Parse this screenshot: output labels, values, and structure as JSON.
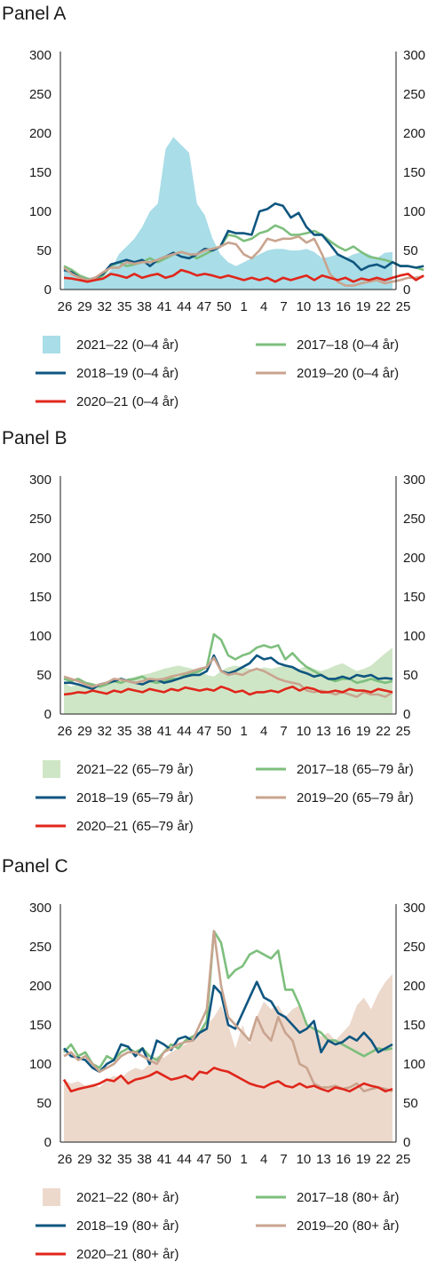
{
  "colors": {
    "s2017_18": "#7dbf7d",
    "s2018_19": "#0f5680",
    "s2019_20": "#c9a48f",
    "s2020_21": "#e0261b",
    "fillA": "#a9dde7",
    "fillB": "#cfe6c6",
    "fillC": "#ecd9cc",
    "axis": "#1a1a1a"
  },
  "chart_data": [
    {
      "panel_title": "Panel A",
      "type": "line",
      "x_tick_labels": [
        "26",
        "29",
        "32",
        "35",
        "38",
        "41",
        "44",
        "47",
        "50",
        "1",
        "4",
        "7",
        "10",
        "13",
        "16",
        "19",
        "22",
        "25"
      ],
      "y_ticks": [
        0,
        50,
        100,
        150,
        200,
        250,
        300
      ],
      "ylim": [
        0,
        300
      ],
      "secondary_y_axis": true,
      "legend": [
        "2021–22 (0–4 år)",
        "2017–18 (0–4 år)",
        "2018–19 (0–4 år)",
        "2019–20 (0–4 år)",
        "2020–21 (0–4 år)"
      ],
      "series": [
        {
          "name": "2021–22 (0–4 år)",
          "style": "area",
          "color_key": "fillA",
          "values": [
            30,
            20,
            12,
            10,
            12,
            15,
            25,
            45,
            55,
            65,
            80,
            100,
            110,
            180,
            195,
            185,
            175,
            110,
            95,
            65,
            45,
            35,
            30,
            35,
            40,
            45,
            50,
            52,
            52,
            50,
            50,
            52,
            48,
            40,
            42,
            45,
            40,
            45,
            48,
            45,
            40,
            47,
            48
          ]
        },
        {
          "name": "2017–18 (0–4 år)",
          "style": "line",
          "color_key": "s2017_18",
          "values": [
            30,
            25,
            18,
            14,
            12,
            18,
            30,
            35,
            30,
            32,
            35,
            40,
            35,
            40,
            45,
            48,
            45,
            40,
            45,
            50,
            55,
            70,
            68,
            62,
            65,
            72,
            75,
            82,
            78,
            70,
            70,
            72,
            75,
            70,
            62,
            55,
            50,
            55,
            48,
            42,
            40,
            38,
            35,
            30,
            30,
            28,
            25
          ]
        },
        {
          "name": "2018–19 (0–4 år)",
          "style": "line",
          "color_key": "s2018_19",
          "values": [
            25,
            22,
            15,
            12,
            15,
            20,
            32,
            35,
            38,
            35,
            38,
            30,
            38,
            42,
            47,
            42,
            40,
            45,
            52,
            50,
            55,
            75,
            72,
            72,
            70,
            100,
            103,
            110,
            107,
            92,
            98,
            80,
            70,
            70,
            58,
            45,
            40,
            35,
            25,
            30,
            32,
            28,
            35,
            30,
            30,
            28,
            30
          ]
        },
        {
          "name": "2019–20 (0–4 år)",
          "style": "line",
          "color_key": "s2019_20",
          "values": [
            28,
            20,
            15,
            12,
            15,
            22,
            28,
            28,
            35,
            33,
            35,
            35,
            38,
            42,
            45,
            48,
            45,
            45,
            50,
            52,
            55,
            60,
            58,
            45,
            40,
            50,
            65,
            62,
            65,
            65,
            68,
            60,
            65,
            45,
            20,
            10,
            5,
            5,
            8,
            10,
            12,
            8,
            10,
            12,
            15,
            15,
            17
          ]
        },
        {
          "name": "2020–21 (0–4 år)",
          "style": "line",
          "color_key": "s2020_21",
          "values": [
            15,
            14,
            12,
            10,
            12,
            14,
            20,
            18,
            15,
            20,
            15,
            18,
            20,
            15,
            18,
            25,
            22,
            18,
            20,
            18,
            15,
            18,
            15,
            12,
            15,
            12,
            15,
            10,
            15,
            12,
            15,
            18,
            12,
            18,
            15,
            12,
            15,
            10,
            14,
            12,
            15,
            12,
            15,
            18,
            20,
            12,
            18
          ]
        }
      ]
    },
    {
      "panel_title": "Panel B",
      "type": "line",
      "x_tick_labels": [
        "26",
        "29",
        "32",
        "35",
        "38",
        "41",
        "44",
        "47",
        "50",
        "1",
        "4",
        "7",
        "10",
        "13",
        "16",
        "19",
        "22",
        "25"
      ],
      "y_ticks": [
        0,
        50,
        100,
        150,
        200,
        250,
        300
      ],
      "ylim": [
        0,
        300
      ],
      "secondary_y_axis": true,
      "legend": [
        "2021–22 (65–79 år)",
        "2017–18 (65–79 år)",
        "2018–19 (65–79 år)",
        "2019–20 (65–79 år)",
        "2020–21 (65–79 år)"
      ],
      "series": [
        {
          "name": "2021–22 (65–79 år)",
          "style": "area",
          "color_key": "fillB",
          "values": [
            40,
            35,
            38,
            35,
            32,
            35,
            38,
            40,
            42,
            45,
            48,
            50,
            52,
            55,
            58,
            60,
            62,
            60,
            58,
            55,
            50,
            48,
            55,
            60,
            62,
            60,
            58,
            56,
            60,
            58,
            60,
            62,
            60,
            58,
            62,
            58,
            55,
            58,
            62,
            65,
            60,
            55,
            58,
            62,
            70,
            78,
            85
          ]
        },
        {
          "name": "2017–18 (65–79 år)",
          "style": "line",
          "color_key": "s2017_18",
          "values": [
            45,
            42,
            45,
            40,
            38,
            35,
            38,
            42,
            40,
            44,
            45,
            48,
            42,
            40,
            42,
            45,
            45,
            50,
            52,
            55,
            60,
            102,
            95,
            75,
            70,
            75,
            78,
            85,
            88,
            85,
            88,
            70,
            78,
            68,
            60,
            55,
            50,
            45,
            42,
            45,
            45,
            40,
            42,
            45,
            42,
            40,
            42
          ]
        },
        {
          "name": "2018–19 (65–79 år)",
          "style": "line",
          "color_key": "s2018_19",
          "values": [
            40,
            40,
            38,
            35,
            32,
            38,
            40,
            42,
            45,
            42,
            40,
            38,
            42,
            44,
            40,
            42,
            45,
            48,
            50,
            50,
            55,
            75,
            55,
            52,
            55,
            60,
            65,
            75,
            70,
            72,
            65,
            62,
            60,
            55,
            52,
            48,
            50,
            45,
            45,
            48,
            45,
            50,
            48,
            50,
            45,
            46,
            45
          ]
        },
        {
          "name": "2019–20 (65–79 år)",
          "style": "line",
          "color_key": "s2019_20",
          "values": [
            48,
            45,
            42,
            38,
            35,
            38,
            40,
            45,
            44,
            42,
            40,
            42,
            45,
            44,
            45,
            48,
            50,
            52,
            55,
            58,
            60,
            72,
            55,
            50,
            52,
            50,
            55,
            58,
            55,
            50,
            45,
            42,
            40,
            38,
            30,
            28,
            30,
            28,
            25,
            28,
            25,
            22,
            28,
            25,
            25,
            22,
            28
          ]
        },
        {
          "name": "2020–21 (65–79 år)",
          "style": "line",
          "color_key": "s2020_21",
          "values": [
            25,
            26,
            28,
            27,
            30,
            28,
            26,
            30,
            28,
            32,
            30,
            28,
            32,
            30,
            28,
            32,
            30,
            34,
            32,
            30,
            32,
            30,
            35,
            32,
            28,
            30,
            25,
            28,
            28,
            30,
            28,
            32,
            35,
            30,
            34,
            32,
            28,
            28,
            30,
            28,
            32,
            30,
            30,
            28,
            32,
            30,
            28
          ]
        }
      ]
    },
    {
      "panel_title": "Panel C",
      "type": "line",
      "x_tick_labels": [
        "26",
        "29",
        "32",
        "35",
        "38",
        "41",
        "44",
        "47",
        "50",
        "1",
        "4",
        "7",
        "10",
        "13",
        "16",
        "19",
        "22",
        "25"
      ],
      "y_ticks": [
        0,
        50,
        100,
        150,
        200,
        250,
        300
      ],
      "ylim": [
        0,
        300
      ],
      "secondary_y_axis": true,
      "legend": [
        "2021–22 (80+ år)",
        "2017–18 (80+ år)",
        "2018–19 (80+ år)",
        "2019–20 (80+ år)",
        "2020–21 (80+ år)"
      ],
      "series": [
        {
          "name": "2021–22 (80+ år)",
          "style": "area",
          "color_key": "fillC",
          "values": [
            80,
            75,
            78,
            72,
            75,
            70,
            80,
            85,
            82,
            90,
            95,
            92,
            100,
            110,
            108,
            115,
            120,
            125,
            130,
            140,
            150,
            160,
            175,
            150,
            120,
            150,
            125,
            160,
            180,
            170,
            175,
            160,
            170,
            175,
            150,
            145,
            135,
            140,
            130,
            140,
            150,
            175,
            185,
            170,
            190,
            205,
            215
          ]
        },
        {
          "name": "2017–18 (80+ år)",
          "style": "line",
          "color_key": "s2017_18",
          "values": [
            115,
            125,
            110,
            115,
            100,
            95,
            110,
            105,
            115,
            120,
            115,
            120,
            110,
            105,
            115,
            125,
            120,
            130,
            135,
            140,
            155,
            270,
            255,
            210,
            220,
            225,
            240,
            245,
            240,
            235,
            245,
            195,
            195,
            175,
            150,
            145,
            140,
            130,
            130,
            125,
            120,
            115,
            110,
            115,
            120,
            118,
            120
          ]
        },
        {
          "name": "2018–19 (80+ år)",
          "style": "line",
          "color_key": "s2018_19",
          "values": [
            120,
            110,
            108,
            105,
            95,
            90,
            100,
            105,
            125,
            122,
            110,
            120,
            100,
            130,
            125,
            118,
            132,
            135,
            130,
            140,
            145,
            200,
            190,
            150,
            145,
            165,
            185,
            205,
            185,
            180,
            165,
            160,
            150,
            140,
            145,
            155,
            115,
            130,
            125,
            128,
            135,
            130,
            140,
            130,
            115,
            120,
            125
          ]
        },
        {
          "name": "2019–20 (80+ år)",
          "style": "line",
          "color_key": "s2019_20",
          "values": [
            110,
            115,
            105,
            110,
            100,
            90,
            95,
            100,
            110,
            115,
            115,
            110,
            105,
            100,
            115,
            120,
            125,
            128,
            130,
            150,
            170,
            270,
            200,
            160,
            150,
            140,
            130,
            160,
            140,
            130,
            160,
            140,
            130,
            100,
            95,
            75,
            70,
            70,
            72,
            68,
            70,
            75,
            65,
            68,
            70,
            68,
            65
          ]
        },
        {
          "name": "2020–21 (80+ år)",
          "style": "line",
          "color_key": "s2020_21",
          "values": [
            80,
            65,
            68,
            70,
            72,
            75,
            80,
            78,
            85,
            75,
            80,
            82,
            85,
            90,
            85,
            80,
            82,
            85,
            80,
            90,
            88,
            95,
            92,
            90,
            85,
            80,
            75,
            72,
            70,
            75,
            78,
            72,
            70,
            75,
            70,
            72,
            68,
            65,
            70,
            68,
            65,
            70,
            75,
            72,
            70,
            65,
            68
          ]
        }
      ]
    }
  ]
}
